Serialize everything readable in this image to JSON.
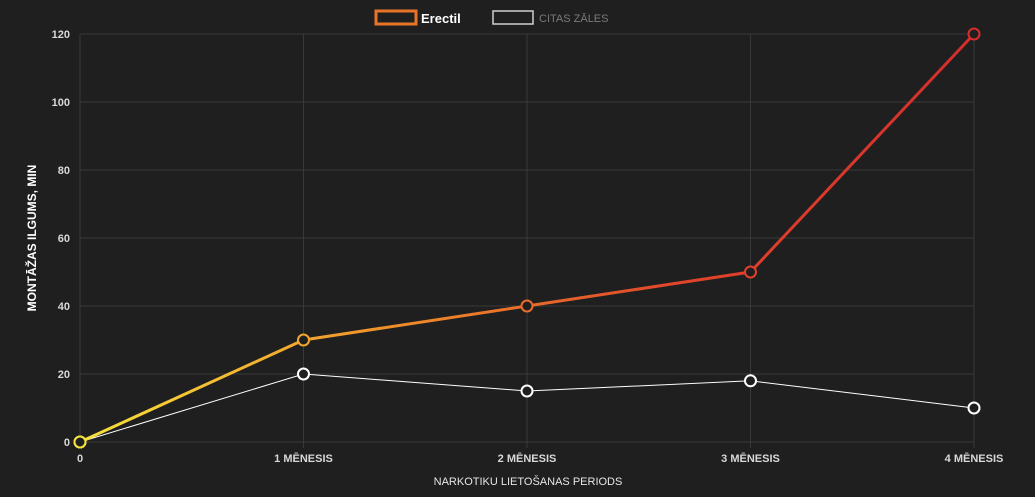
{
  "chart_data": {
    "type": "line",
    "categories": [
      "0",
      "1 MĒNESIS",
      "2 MĒNESIS",
      "3 MĒNESIS",
      "4 MĒNESIS"
    ],
    "series": [
      {
        "name": "Erectil",
        "values": [
          0,
          30,
          40,
          50,
          120
        ],
        "gradient_colors": [
          "#f7e23a",
          "#f0922a",
          "#e2452a",
          "#d42d2d"
        ],
        "legend_border_color": "#e8742a"
      },
      {
        "name": "CITAS ZĀLES",
        "values": [
          0,
          20,
          15,
          18,
          10
        ],
        "color": "#ffffff",
        "legend_border_color": "#cfcfcf"
      }
    ],
    "xlabel": "NARKOTIKU LIETOŠANAS PERIODS",
    "ylabel": "MONTĀŽAS ILGUMS, MIN",
    "ylim": [
      0,
      120
    ],
    "yticks": [
      0,
      20,
      40,
      60,
      80,
      100,
      120
    ],
    "grid": true,
    "legend_position": "top-center",
    "background": "#1f1f1f",
    "grid_color": "#383838"
  }
}
